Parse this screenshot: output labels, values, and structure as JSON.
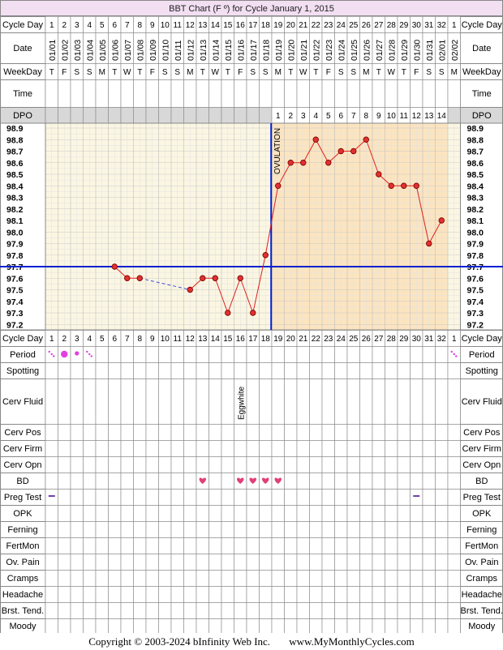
{
  "chart_data": {
    "type": "line",
    "title": "BBT Chart (F º) for Cycle January 1, 2015",
    "cycle_days": [
      "1",
      "2",
      "3",
      "4",
      "5",
      "6",
      "7",
      "8",
      "9",
      "10",
      "11",
      "12",
      "13",
      "14",
      "15",
      "16",
      "17",
      "18",
      "19",
      "20",
      "21",
      "22",
      "23",
      "24",
      "25",
      "26",
      "27",
      "28",
      "29",
      "30",
      "31",
      "32",
      "1"
    ],
    "dates": [
      "01/01",
      "01/02",
      "01/03",
      "01/04",
      "01/05",
      "01/06",
      "01/07",
      "01/08",
      "01/09",
      "01/10",
      "01/11",
      "01/12",
      "01/13",
      "01/14",
      "01/15",
      "01/16",
      "01/17",
      "01/18",
      "01/19",
      "01/20",
      "01/21",
      "01/22",
      "01/23",
      "01/24",
      "01/25",
      "01/26",
      "01/27",
      "01/28",
      "01/29",
      "01/30",
      "01/31",
      "02/01",
      "02/02"
    ],
    "weekdays": [
      "T",
      "F",
      "S",
      "S",
      "M",
      "T",
      "W",
      "T",
      "F",
      "S",
      "S",
      "M",
      "T",
      "W",
      "T",
      "F",
      "S",
      "S",
      "M",
      "T",
      "W",
      "T",
      "F",
      "S",
      "S",
      "M",
      "T",
      "W",
      "T",
      "F",
      "S",
      "S",
      "M"
    ],
    "dpo": [
      "",
      "",
      "",
      "",
      "",
      "",
      "",
      "",
      "",
      "",
      "",
      "",
      "",
      "",
      "",
      "",
      "",
      "",
      "1",
      "2",
      "3",
      "4",
      "5",
      "6",
      "7",
      "8",
      "9",
      "10",
      "11",
      "12",
      "13",
      "14",
      ""
    ],
    "temps": [
      null,
      null,
      null,
      null,
      null,
      97.7,
      97.6,
      97.6,
      null,
      null,
      null,
      97.5,
      97.6,
      97.6,
      97.3,
      97.6,
      97.3,
      97.8,
      98.4,
      98.6,
      98.6,
      98.8,
      98.6,
      98.7,
      98.7,
      98.8,
      98.5,
      98.4,
      98.4,
      98.4,
      97.9,
      98.1,
      null
    ],
    "y_ticks": [
      "98.9",
      "98.8",
      "98.7",
      "98.6",
      "98.5",
      "98.4",
      "98.3",
      "98.2",
      "98.1",
      "98.0",
      "97.9",
      "97.8",
      "97.7",
      "97.6",
      "97.5",
      "97.4",
      "97.3",
      "97.2"
    ],
    "ylim": [
      97.2,
      98.9
    ],
    "coverline": 97.7,
    "ovulation_day_index": 17,
    "ovulation_label": "OVULATION",
    "grid": true
  },
  "rows": {
    "cycle_day": "Cycle Day",
    "date": "Date",
    "weekday": "WeekDay",
    "time": "Time",
    "dpo": "DPO",
    "period": "Period",
    "spotting": "Spotting",
    "cerv_fluid": "Cerv Fluid",
    "cerv_pos": "Cerv Pos",
    "cerv_firm": "Cerv Firm",
    "cerv_opn": "Cerv Opn",
    "bd": "BD",
    "preg_test": "Preg Test",
    "opk": "OPK",
    "ferning": "Ferning",
    "fertmon": "FertMon",
    "ov_pain": "Ov. Pain",
    "cramps": "Cramps",
    "headache": "Headache",
    "brst_tend": "Brst. Tend.",
    "moody": "Moody"
  },
  "markers": {
    "period": [
      {
        "day": 0,
        "kind": "spotting-dots"
      },
      {
        "day": 1,
        "kind": "dot-large"
      },
      {
        "day": 2,
        "kind": "dot-small"
      },
      {
        "day": 3,
        "kind": "spotting-dots"
      },
      {
        "day": 32,
        "kind": "spotting-dots"
      }
    ],
    "cerv_fluid": [
      {
        "day": 15,
        "text": "Eggwhite"
      }
    ],
    "bd": [
      12,
      15,
      16,
      17,
      18
    ],
    "preg_test": [
      0,
      29
    ],
    "colors": {
      "period": "#e040e0",
      "bd": "#e0407a",
      "preg_test": "#7040b0",
      "line": "#e02020",
      "point": "#e03030",
      "coverline": "#0020d0"
    }
  },
  "footer": {
    "copyright": "Copyright © 2003-2024 bInfinity Web Inc.",
    "site": "www.MyMonthlyCycles.com"
  }
}
